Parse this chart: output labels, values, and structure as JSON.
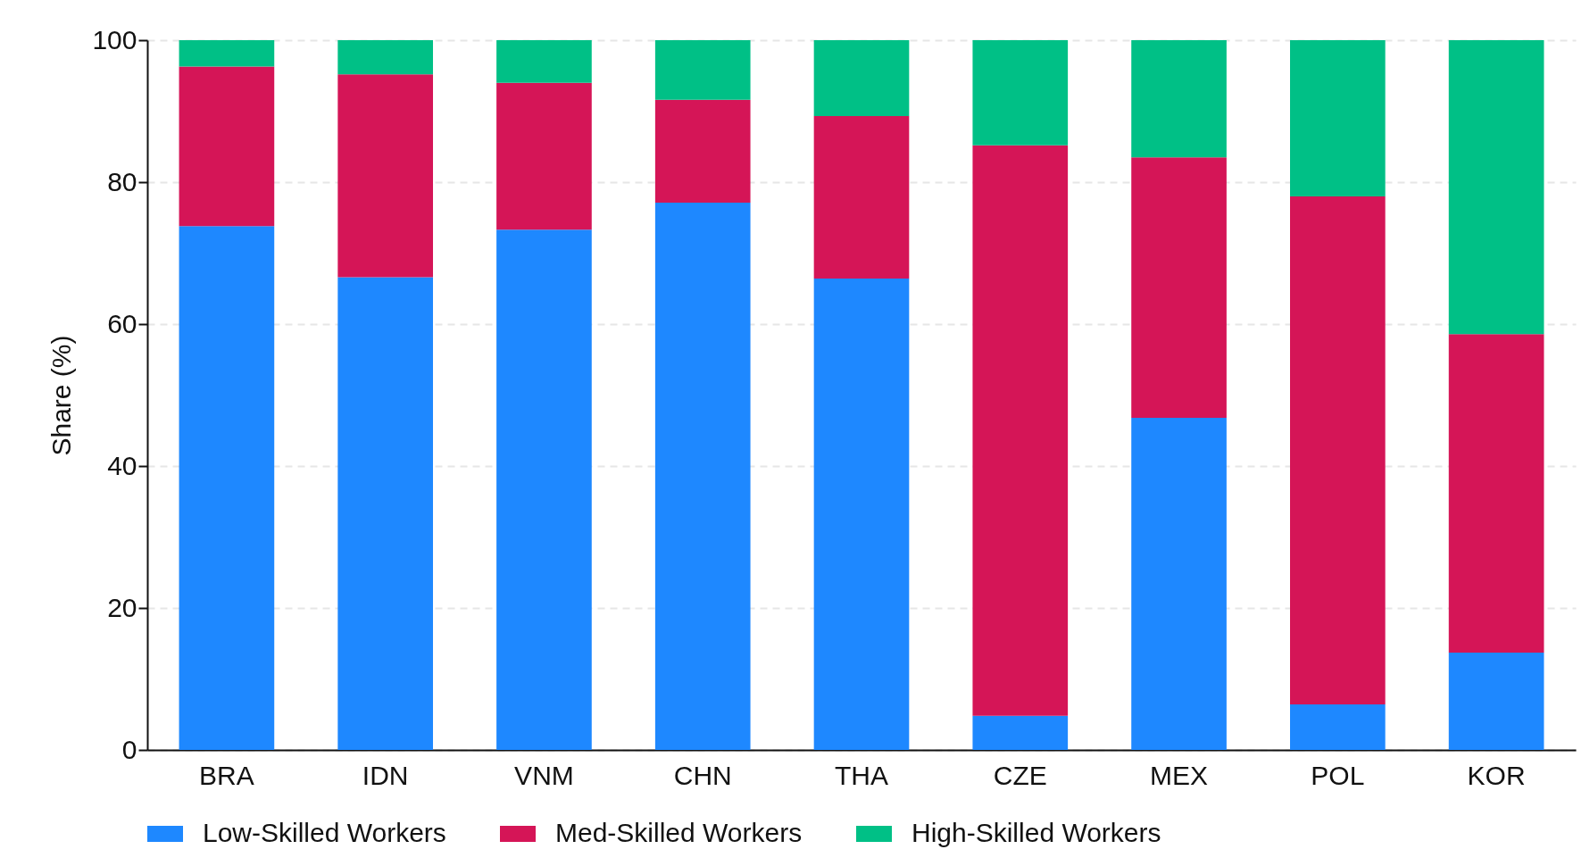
{
  "chart_data": {
    "type": "bar",
    "stacked": true,
    "ylabel": "Share (%)",
    "categories": [
      "BRA",
      "IDN",
      "VNM",
      "CHN",
      "THA",
      "CZE",
      "MEX",
      "POL",
      "KOR"
    ],
    "series": [
      {
        "name": "Low-Skilled Workers",
        "color": "#1e88ff",
        "values": [
          73.8,
          66.6,
          73.3,
          77.1,
          66.4,
          4.8,
          46.8,
          6.4,
          13.7
        ]
      },
      {
        "name": "Med-Skilled Workers",
        "color": "#d51557",
        "values": [
          22.5,
          28.6,
          20.7,
          14.5,
          22.9,
          80.4,
          36.7,
          71.6,
          44.9
        ]
      },
      {
        "name": "High-Skilled Workers",
        "color": "#00c086",
        "values": [
          3.7,
          4.8,
          6.0,
          8.4,
          10.7,
          14.8,
          16.5,
          22.0,
          41.4
        ]
      }
    ],
    "ylim": [
      0,
      100
    ],
    "yticks": [
      0,
      20,
      40,
      60,
      80,
      100
    ],
    "grid": "y",
    "legend": "bottom"
  }
}
